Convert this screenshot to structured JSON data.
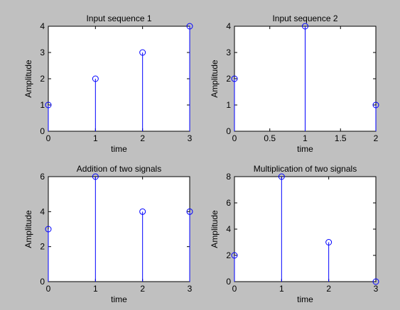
{
  "figure": {
    "background": "#c0c0c0",
    "axes_background": "#ffffff",
    "stem_color": "#0000ff"
  },
  "chart_data": [
    {
      "type": "stem",
      "title": "Input sequence 1",
      "xlabel": "time",
      "ylabel": "Amplitude",
      "x": [
        0,
        1,
        2,
        3
      ],
      "y": [
        1,
        2,
        3,
        4
      ],
      "xlim": [
        0,
        3
      ],
      "ylim": [
        0,
        4
      ],
      "xticks": [
        "0",
        "1",
        "2",
        "3"
      ],
      "yticks": [
        "0",
        "1",
        "2",
        "3",
        "4"
      ],
      "grid": false
    },
    {
      "type": "stem",
      "title": "Input sequence 2",
      "xlabel": "time",
      "ylabel": "Amplitude",
      "x": [
        0,
        1,
        2
      ],
      "y": [
        2,
        4,
        1
      ],
      "xlim": [
        0,
        2
      ],
      "ylim": [
        0,
        4
      ],
      "xticks": [
        "0",
        "0.5",
        "1",
        "1.5",
        "2"
      ],
      "yticks": [
        "0",
        "1",
        "2",
        "3",
        "4"
      ],
      "grid": false
    },
    {
      "type": "stem",
      "title": "Addition of two signals",
      "xlabel": "time",
      "ylabel": "Amplitude",
      "x": [
        0,
        1,
        2,
        3
      ],
      "y": [
        3,
        6,
        4,
        4
      ],
      "xlim": [
        0,
        3
      ],
      "ylim": [
        0,
        6
      ],
      "xticks": [
        "0",
        "1",
        "2",
        "3"
      ],
      "yticks": [
        "0",
        "2",
        "4",
        "6"
      ],
      "grid": false
    },
    {
      "type": "stem",
      "title": "Multiplication of two signals",
      "xlabel": "time",
      "ylabel": "Amplitude",
      "x": [
        0,
        1,
        2,
        3
      ],
      "y": [
        2,
        8,
        3,
        0
      ],
      "xlim": [
        0,
        3
      ],
      "ylim": [
        0,
        8
      ],
      "xticks": [
        "0",
        "1",
        "2",
        "3"
      ],
      "yticks": [
        "0",
        "2",
        "4",
        "6",
        "8"
      ],
      "grid": false
    }
  ]
}
